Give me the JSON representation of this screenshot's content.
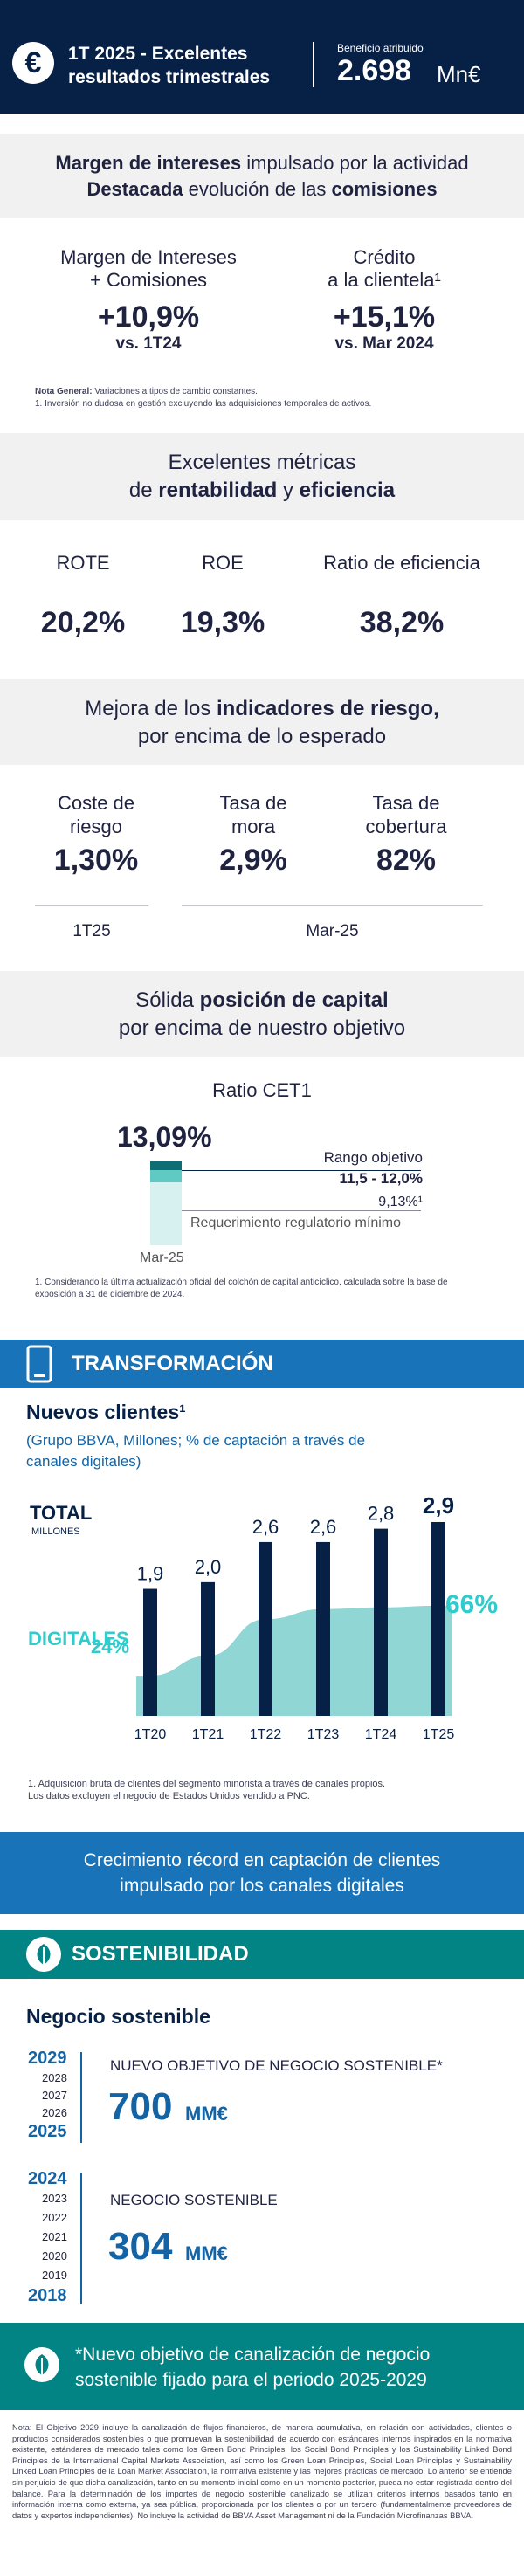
{
  "header": {
    "logo": "€",
    "title_line1": "1T 2025 - Excelentes",
    "title_line2": "resultados trimestrales",
    "benefit_label": "Beneficio atribuido",
    "benefit_value": "2.698",
    "benefit_unit": "Mn€"
  },
  "margin": {
    "headline_bold1": "Margen de intereses",
    "headline_rest1": " impulsado por la actividad",
    "headline_bold2": "Destacada",
    "headline_rest2": " evolución de las ",
    "headline_bold3": "comisiones",
    "m1_label1": "Margen de Intereses",
    "m1_label2": "+ Comisiones",
    "m1_value": "+10,9%",
    "m1_sub": "vs. 1T24",
    "m2_label1": "Crédito",
    "m2_label2": "a la clientela¹",
    "m2_value": "+15,1%",
    "m2_sub": "vs. Mar 2024",
    "note_bold": "Nota General:",
    "note_rest": " Variaciones a tipos de cambio constantes.",
    "note2": "1. Inversión no dudosa en gestión excluyendo las adquisiciones temporales de activos."
  },
  "profitability": {
    "headline_line1": "Excelentes métricas",
    "headline_pre": "de ",
    "headline_bold1": "rentabilidad",
    "headline_mid": " y ",
    "headline_bold2": "eficiencia",
    "items": [
      {
        "label": "ROTE",
        "value": "20,2%"
      },
      {
        "label": "ROE",
        "value": "19,3%"
      },
      {
        "label": "Ratio de eficiencia",
        "value": "38,2%"
      }
    ]
  },
  "risk": {
    "headline_pre": "Mejora de los ",
    "headline_bold": "indicadores de riesgo,",
    "headline_line2": "por encima de lo esperado",
    "items": [
      {
        "label1": "Coste de",
        "label2": "riesgo",
        "value": "1,30%"
      },
      {
        "label1": "Tasa de",
        "label2": "mora",
        "value": "2,9%"
      },
      {
        "label1": "Tasa de",
        "label2": "cobertura",
        "value": "82%"
      }
    ],
    "period1": "1T25",
    "period2": "Mar-25"
  },
  "capital": {
    "headline_pre": "Sólida ",
    "headline_bold": "posición de capital",
    "headline_line2": "por encima de nuestro objetivo",
    "ratio_label": "Ratio CET1",
    "ratio_value": "13,09%",
    "target_label": "Rango objetivo",
    "target_value": "11,5 - 12,0%",
    "req_value": "9,13%¹",
    "req_label": "Requerimiento regulatorio mínimo",
    "date": "Mar-25",
    "note": "1. Considerando la última actualización oficial del colchón de capital anticíclico, calculada sobre la base de exposición a 31 de diciembre de 2024.",
    "colors": {
      "dark": "#0f6e73",
      "mid": "#5fc9c3",
      "light": "#d6f1ef"
    }
  },
  "transformation": {
    "section_title": "TRANSFORMACIÓN",
    "icon": "phone-icon",
    "chart_title": "Nuevos clientes¹",
    "chart_subtitle": "(Grupo BBVA, Millones; % de captación a través de canales digitales)",
    "total_label": "TOTAL",
    "total_unit": "MILLONES",
    "digital_label": "DIGITALES",
    "note1": "1. Adquisición bruta de clientes del segmento minorista a través de canales propios.",
    "note2": "Los datos excluyen el negocio de Estados Unidos vendido a PNC.",
    "banner_line1": "Crecimiento récord en captación de clientes",
    "banner_line2": "impulsado por los canales digitales",
    "colors": {
      "header": "#1973b8",
      "bar": "#072146",
      "area": "#8fd6d4",
      "digital": "#2dcccd"
    }
  },
  "chart_data": {
    "type": "bar",
    "categories": [
      "1T20",
      "1T21",
      "1T22",
      "1T23",
      "1T24",
      "1T25"
    ],
    "series": [
      {
        "name": "TOTAL",
        "values": [
          1.9,
          2.0,
          2.6,
          2.6,
          2.8,
          2.9
        ],
        "labels": [
          "1,9",
          "2,0",
          "2,6",
          "2,6",
          "2,8",
          "2,9"
        ]
      },
      {
        "name": "DIGITALES",
        "values": [
          24,
          36,
          58,
          64,
          65,
          66
        ],
        "labels": [
          "24%",
          "",
          "",
          "",
          "",
          "66%"
        ]
      }
    ],
    "ylim": [
      0,
      3.2
    ]
  },
  "sustainability": {
    "section_title": "SOSTENIBILIDAD",
    "icon": "leaf-icon",
    "title": "Negocio sostenible",
    "target_years": [
      "2029",
      "2028",
      "2027",
      "2026",
      "2025"
    ],
    "target_caption": "NUEVO OBJETIVO DE NEGOCIO SOSTENIBLE*",
    "target_value": "700",
    "target_unit": "MM€",
    "done_years": [
      "2024",
      "2023",
      "2022",
      "2021",
      "2020",
      "2019",
      "2018"
    ],
    "done_caption": "NEGOCIO SOSTENIBLE",
    "done_value": "304",
    "done_unit": "MM€",
    "banner_line1": "*Nuevo objetivo de canalización de negocio",
    "banner_line2": "sostenible fijado para el periodo 2025-2029",
    "colors": {
      "header": "#028484",
      "year": "#1464a5"
    },
    "note": "Nota: El Objetivo 2029 incluye la canalización de flujos financieros, de manera acumulativa, en relación con actividades, clientes o productos considerados sostenibles o que promuevan la sostenibilidad de acuerdo con estándares internos inspirados en la normativa existente, estándares de mercado tales como los Green Bond Principles, los Social Bond Principles y los Sustainability Linked Bond Principles de la International Capital Markets Association, así como los Green Loan Principles, Social Loan Principles y Sustainability Linked Loan Principles de la Loan Market Association, la normativa existente y las mejores prácticas de mercado. Lo anterior se entiende sin perjuicio de que dicha canalización, tanto en su momento inicial como en un momento posterior, pueda no estar registrada dentro del balance. Para la determinación de los importes de negocio sostenible canalizado se utilizan criterios internos basados tanto en información interna como externa, ya sea pública, proporcionada por los clientes o por un tercero (fundamentalmente proveedores de datos y expertos independientes). No incluye la actividad de BBVA Asset Management ni de la Fundación Microfinanzas BBVA."
  }
}
